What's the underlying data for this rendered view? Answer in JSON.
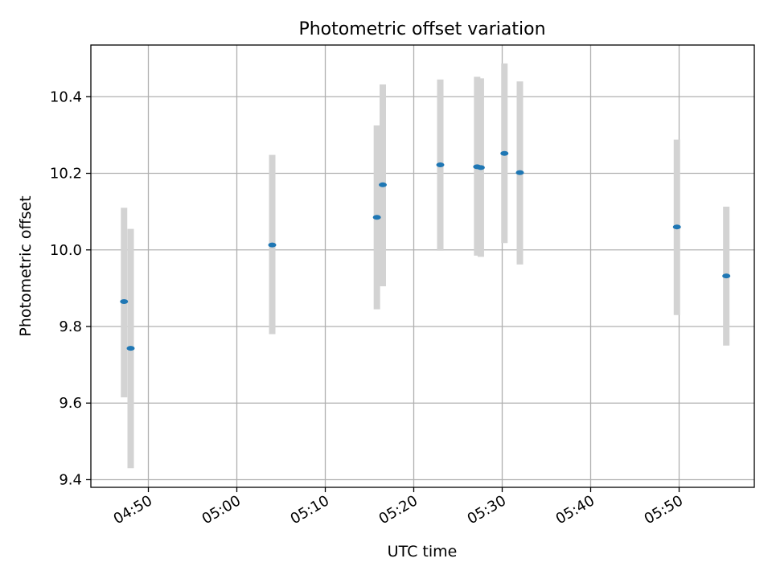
{
  "chart_data": {
    "type": "scatter",
    "title": "Photometric offset variation",
    "xlabel": "UTC time",
    "ylabel": "Photometric offset",
    "xlim": [
      "04:43:30",
      "05:58:30"
    ],
    "ylim": [
      9.38,
      10.535
    ],
    "grid": true,
    "x_ticks": [
      "04:50",
      "05:00",
      "05:10",
      "05:20",
      "05:30",
      "05:40",
      "05:50"
    ],
    "y_ticks": [
      "9.4",
      "9.6",
      "9.8",
      "10.0",
      "10.2",
      "10.4"
    ],
    "colors": {
      "point": "#1f77b4",
      "errorbar": "#d3d3d3",
      "grid": "#b0b0b0"
    },
    "points": [
      {
        "x": "04:47:15",
        "y": 9.865,
        "ylow": 9.615,
        "yhigh": 10.11
      },
      {
        "x": "04:48:00",
        "y": 9.743,
        "ylow": 9.43,
        "yhigh": 10.055
      },
      {
        "x": "05:04:00",
        "y": 10.013,
        "ylow": 9.78,
        "yhigh": 10.248
      },
      {
        "x": "05:15:50",
        "y": 10.085,
        "ylow": 9.845,
        "yhigh": 10.325
      },
      {
        "x": "05:16:30",
        "y": 10.17,
        "ylow": 9.905,
        "yhigh": 10.432
      },
      {
        "x": "05:23:00",
        "y": 10.222,
        "ylow": 9.998,
        "yhigh": 10.445
      },
      {
        "x": "05:27:10",
        "y": 10.217,
        "ylow": 9.985,
        "yhigh": 10.452
      },
      {
        "x": "05:27:35",
        "y": 10.215,
        "ylow": 9.982,
        "yhigh": 10.448
      },
      {
        "x": "05:30:15",
        "y": 10.252,
        "ylow": 10.018,
        "yhigh": 10.487
      },
      {
        "x": "05:32:00",
        "y": 10.202,
        "ylow": 9.962,
        "yhigh": 10.44
      },
      {
        "x": "05:49:45",
        "y": 10.06,
        "ylow": 9.83,
        "yhigh": 10.288
      },
      {
        "x": "05:55:20",
        "y": 9.932,
        "ylow": 9.75,
        "yhigh": 10.113
      }
    ]
  }
}
